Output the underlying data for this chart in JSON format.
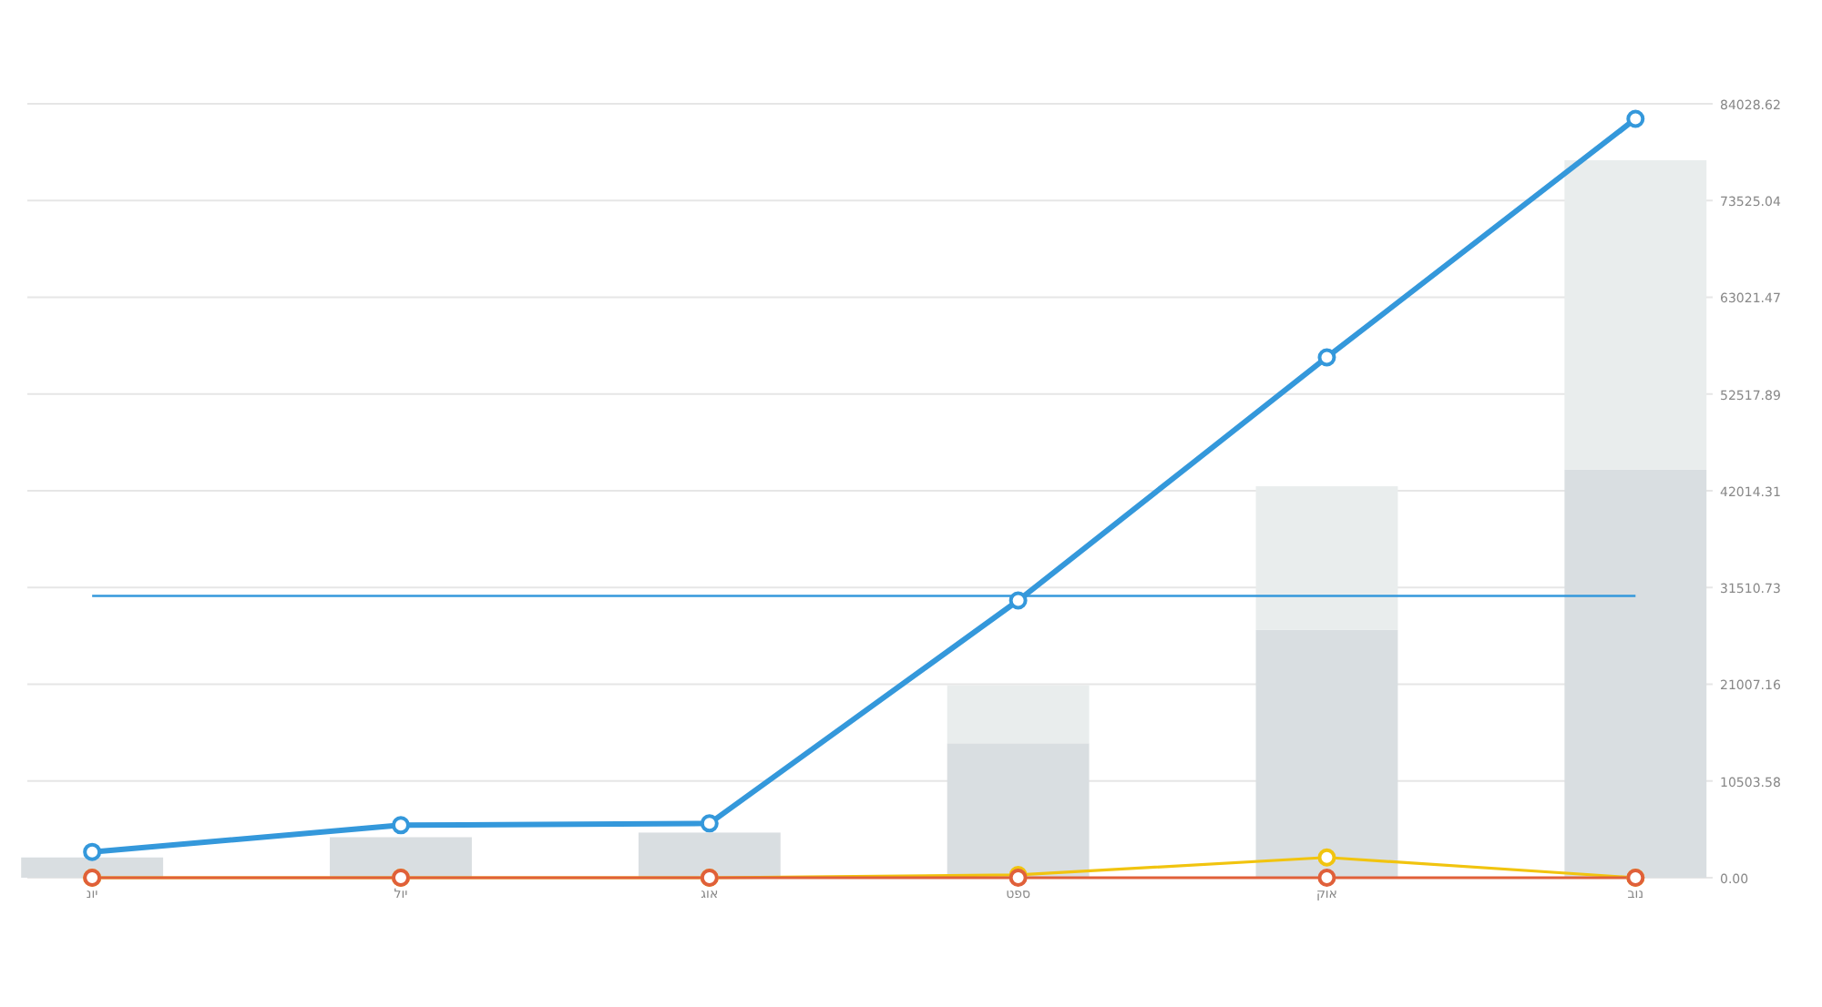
{
  "chart_data": {
    "type": "bar",
    "stacked": true,
    "categories": [
      "יונ",
      "יול",
      "אוג",
      "ספט",
      "אוק",
      "נוב"
    ],
    "series": [
      {
        "color": "#d9dee1",
        "values": [
          2200,
          4400,
          4900,
          14600,
          26900,
          44300
        ]
      },
      {
        "color": "#e9eded",
        "values": [
          null,
          null,
          null,
          6300,
          15600,
          33600
        ]
      },
      {
        "type": "line",
        "color": "#3498db",
        "marker": "circle",
        "values": [
          2800,
          5700,
          5900,
          30100,
          56500,
          82400
        ]
      },
      {
        "type": "line",
        "color": "#f1c40f",
        "marker": "circle",
        "values": [
          0,
          0,
          0,
          300,
          2200,
          0
        ]
      },
      {
        "type": "line",
        "color": "#e0603a",
        "marker": "circle",
        "values": [
          0,
          0,
          0,
          0,
          0,
          0
        ]
      }
    ],
    "ref_lines": [
      {
        "axis": "y",
        "value": 30600,
        "color": "#3498db"
      }
    ],
    "ylim": [
      0,
      84028.62
    ],
    "yticks": [
      {
        "value": 0,
        "label": "0.00"
      },
      10503.58,
      21007.16,
      31510.73,
      42014.31,
      52517.89,
      63021.47,
      73525.04,
      84028.62
    ],
    "grid": "y"
  }
}
